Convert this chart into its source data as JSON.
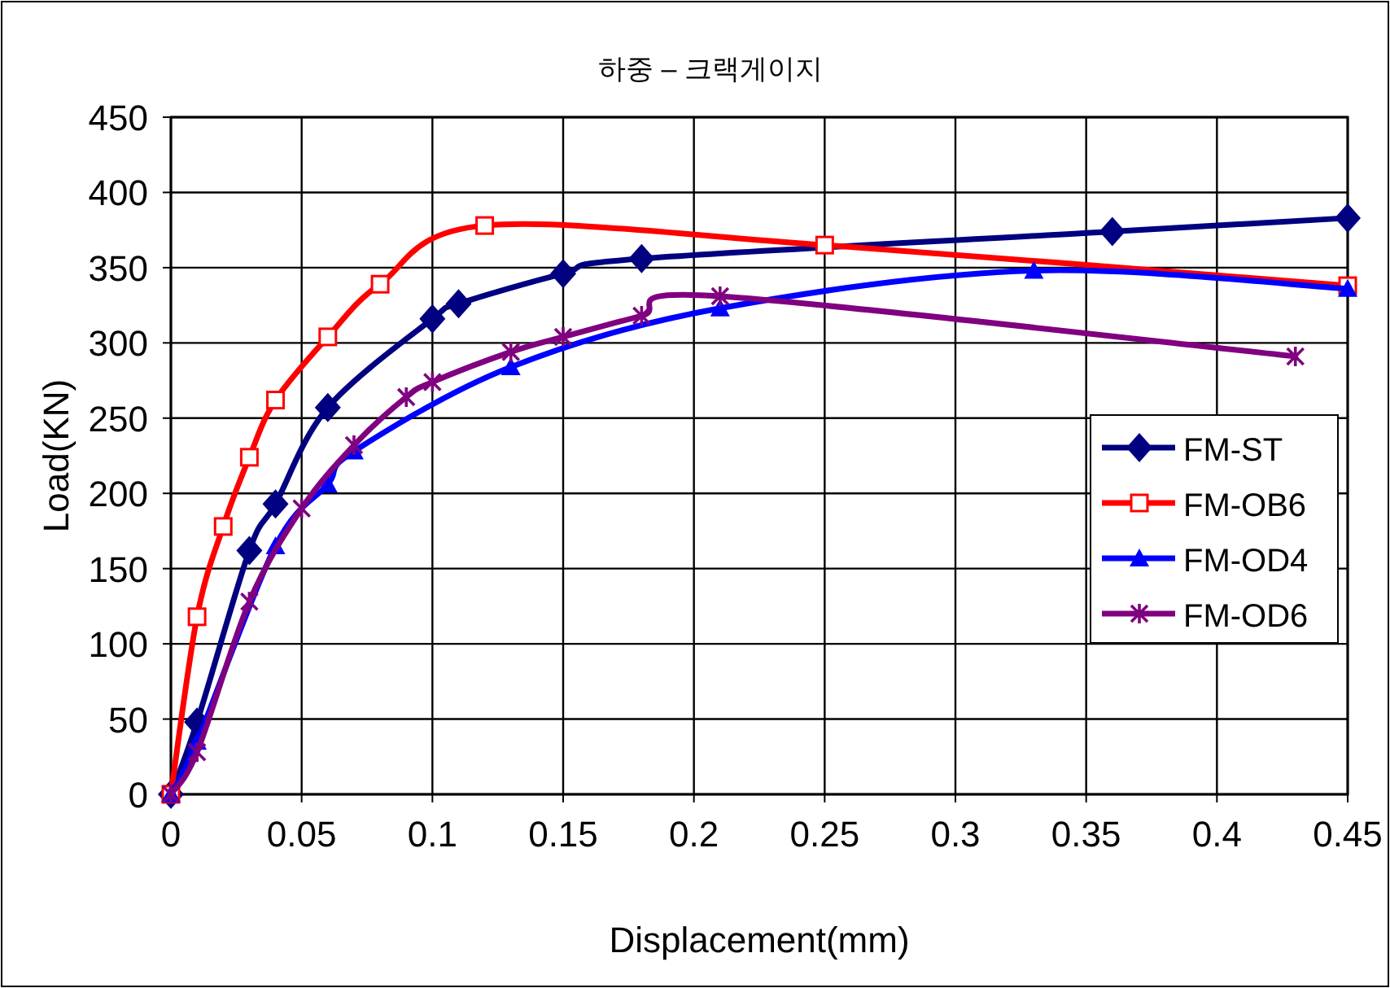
{
  "chart_data": {
    "type": "line",
    "title": "하중 – 크랙게이지",
    "xlabel": "Displacement(mm)",
    "ylabel": "Load(KN)",
    "xlim": [
      0,
      0.45
    ],
    "xticks": [
      0,
      0.05,
      0.1,
      0.15,
      0.2,
      0.25,
      0.3,
      0.35,
      0.4,
      0.45
    ],
    "ylim": [
      0,
      450
    ],
    "yticks": [
      0,
      50,
      100,
      150,
      200,
      250,
      300,
      350,
      400,
      450
    ],
    "grid": true,
    "legend": "right",
    "line_style": "solid",
    "series": [
      {
        "name": "FM-ST",
        "color": "#000080",
        "marker": "diamond",
        "x": [
          0,
          0.01,
          0.03,
          0.04,
          0.06,
          0.1,
          0.11,
          0.15,
          0.18,
          0.36,
          0.45
        ],
        "values": [
          0,
          48,
          162,
          193,
          257,
          316,
          326,
          346,
          356,
          374,
          383
        ]
      },
      {
        "name": "FM-OB6",
        "color": "#ff0000",
        "marker": "square",
        "x": [
          0,
          0.01,
          0.02,
          0.03,
          0.04,
          0.06,
          0.08,
          0.12,
          0.25,
          0.45
        ],
        "values": [
          0,
          118,
          178,
          224,
          262,
          304,
          339,
          378,
          365,
          338
        ]
      },
      {
        "name": "FM-OD4",
        "color": "#0000ff",
        "marker": "triangle",
        "x": [
          0,
          0.01,
          0.04,
          0.06,
          0.07,
          0.13,
          0.21,
          0.33,
          0.45
        ],
        "values": [
          0,
          35,
          165,
          206,
          228,
          284,
          323,
          348,
          336
        ]
      },
      {
        "name": "FM-OD6",
        "color": "#800080",
        "marker": "cross",
        "x": [
          0,
          0.01,
          0.03,
          0.05,
          0.07,
          0.09,
          0.1,
          0.13,
          0.15,
          0.18,
          0.21,
          0.43
        ],
        "values": [
          0,
          28,
          128,
          190,
          232,
          264,
          274,
          294,
          304,
          318,
          331,
          291
        ]
      }
    ]
  }
}
